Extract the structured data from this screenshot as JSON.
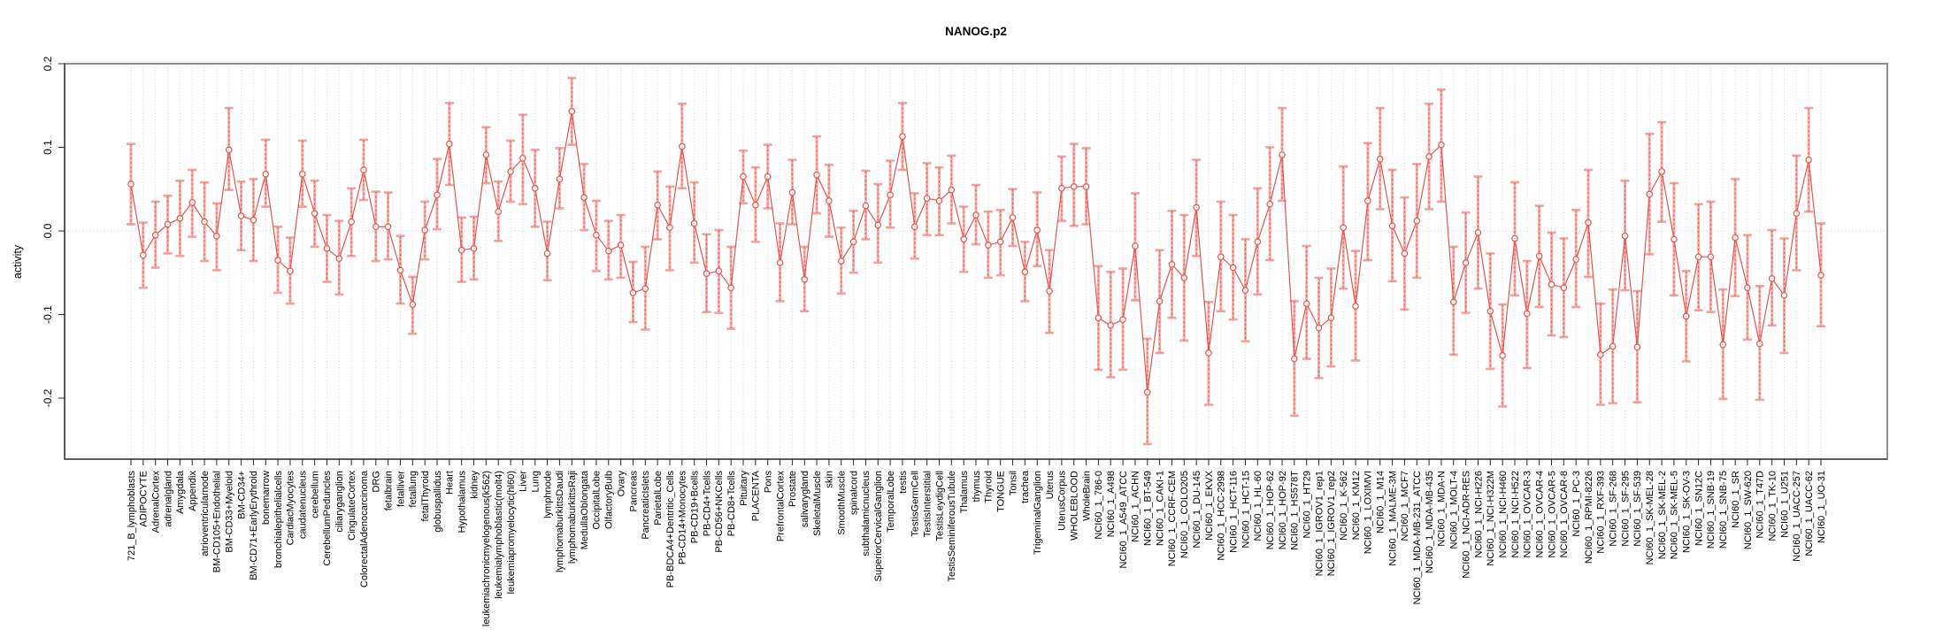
{
  "title": "NANOG.p2",
  "chart_data": {
    "type": "line",
    "title": "NANOG.p2",
    "xlabel": "",
    "ylabel": "activity",
    "ylim": [
      -0.27,
      0.2
    ],
    "yticks": [
      0.2,
      0.1,
      0.0,
      -0.1,
      -0.2
    ],
    "grid": "vertical dotted gridline per category; dotted horizontal line at 0.0",
    "legend": "none",
    "marker": "open-circle",
    "point_color": "#e4564f",
    "errorbar_color": "#f4a09b",
    "gridline_color": "#dadada",
    "frame_color": "#8f8f8f",
    "categories": [
      "721_B_lymphoblasts",
      "ADIPOCYTE",
      "AdrenalCortex",
      "adrenalgland",
      "Amygdala",
      "Appendix",
      "atrioventricularnode",
      "BM-CD105+Endothelial",
      "BM-CD33+Myeloid",
      "BM-CD34+",
      "BM-CD71+EarlyErythroid",
      "bonemarrow",
      "bronchialepithelialcells",
      "CardiacMyocytes",
      "caudatenucleus",
      "cerebellum",
      "CerebellumPeduncles",
      "ciliaryganglion",
      "CingulateCortex",
      "ColorectalAdenocarcinoma",
      "DRG",
      "fetalbrain",
      "fetalliver",
      "fetallung",
      "fetalThyroid",
      "globuspallidus",
      "Heart",
      "Hypothalamus",
      "kidney",
      "leukemiachronicmyelogenous(k562)",
      "leukemialymphoblastic(molt4)",
      "leukemiapromyelocytic(hl60)",
      "Liver",
      "Lung",
      "lymphnode",
      "lymphomaburkittsDaudi",
      "lymphomaburkittsRaji",
      "MedullaOblongata",
      "OccipitalLobe",
      "OlfactoryBulb",
      "Ovary",
      "Pancreas",
      "PancreaticIslets",
      "ParietalLobe",
      "PB-BDCA4+Dentritic_Cells",
      "PB-CD14+Monocytes",
      "PB-CD19+Bcells",
      "PB-CD4+Tcells",
      "PB-CD56+NKCells",
      "PB-CD8+Tcells",
      "Pituitary",
      "PLACENTA",
      "Pons",
      "PrefrontalCortex",
      "Prostate",
      "salivarygland",
      "SkeletalMuscle",
      "skin",
      "SmoothMuscle",
      "spinalcord",
      "subthalamicnucleus",
      "SuperiorCervicalGanglion",
      "TemporalLobe",
      "testis",
      "TestisGermCell",
      "TestisInterstitial",
      "TestisLeydigCell",
      "TestisSeminiferousTubule",
      "Thalamus",
      "thymus",
      "Thyroid",
      "TONGUE",
      "Tonsil",
      "trachea",
      "TrigeminalGanglion",
      "Uterus",
      "UterusCorpus",
      "WHOLEBLOOD",
      "WholeBrain",
      "NCI60_1_786-0",
      "NCI60_1_A498",
      "NCI60_1_A549_ATCC",
      "NCI60_1_ACHN",
      "NCI60_1_BT-549",
      "NCI60_1_CAKI-1",
      "NCI60_1_CCRF-CEM",
      "NCI60_1_COLO205",
      "NCI60_1_DU-145",
      "NCI60_1_EKVX",
      "NCI60_1_HCC-2998",
      "NCI60_1_HCT-116",
      "NCI60_1_HCT-15",
      "NCI60_1_HL-60",
      "NCI60_1_HOP-62",
      "NCI60_1_HOP-92",
      "NCI60_1_HS578T",
      "NCI60_1_HT29",
      "NCI60_1_IGROV1_rep1",
      "NCI60_1_IGROV1_rep2",
      "NCI60_1_K-562",
      "NCI60_1_KM12",
      "NCI60_1_LOXIMVI",
      "NCI60_1_M14",
      "NCI60_1_MALME-3M",
      "NCI60_1_MCF7",
      "NCI60_1_MDA-MB-231_ATCC",
      "NCI60_1_MDA-MB-435",
      "NCI60_1_MDA-N",
      "NCI60_1_MOLT-4",
      "NCI60_1_NCI-ADR-RES",
      "NCI60_1_NCI-H226",
      "NCI60_1_NCI-H322M",
      "NCI60_1_NCI-H460",
      "NCI60_1_NCI-H522",
      "NCI60_1_OVCAR-3",
      "NCI60_1_OVCAR-4",
      "NCI60_1_OVCAR-5",
      "NCI60_1_OVCAR-8",
      "NCI60_1_PC-3",
      "NCI60_1_RPMI-8226",
      "NCI60_1_RXF-393",
      "NCI60_1_SF-268",
      "NCI60_1_SF-295",
      "NCI60_1_SF-539",
      "NCI60_1_SK-MEL-28",
      "NCI60_1_SK-MEL-2",
      "NCI60_1_SK-MEL-5",
      "NCI60_1_SK-OV-3",
      "NCI60_1_SN12C",
      "NCI60_1_SNB-19",
      "NCI60_1_SNB-75",
      "NCI60_1_SR",
      "NCI60_1_SW-620",
      "NCI60_1_T47D",
      "NCI60_1_TK-10",
      "NCI60_1_U251",
      "NCI60_1_UACC-257",
      "NCI60_1_UACC-62",
      "NCI60_1_UO-31"
    ],
    "series": [
      {
        "name": "activity",
        "values": [
          0.056,
          -0.029,
          -0.005,
          0.008,
          0.015,
          0.034,
          0.011,
          -0.006,
          0.097,
          0.018,
          0.013,
          0.068,
          -0.035,
          -0.048,
          0.068,
          0.021,
          -0.021,
          -0.033,
          0.011,
          0.073,
          0.005,
          0.005,
          -0.047,
          -0.088,
          0.001,
          0.043,
          0.104,
          -0.023,
          -0.021,
          0.091,
          0.023,
          0.071,
          0.087,
          0.051,
          -0.027,
          0.062,
          0.143,
          0.04,
          -0.005,
          -0.024,
          -0.017,
          -0.074,
          -0.069,
          0.031,
          0.004,
          0.101,
          0.009,
          -0.051,
          -0.048,
          -0.068,
          0.065,
          0.031,
          0.065,
          -0.038,
          0.046,
          -0.058,
          0.067,
          0.036,
          -0.036,
          -0.013,
          0.03,
          0.007,
          0.043,
          0.113,
          0.005,
          0.039,
          0.036,
          0.049,
          -0.01,
          0.019,
          -0.017,
          -0.013,
          0.016,
          -0.049,
          0.001,
          -0.072,
          0.051,
          0.053,
          0.053,
          -0.104,
          -0.113,
          -0.106,
          -0.018,
          -0.193,
          -0.084,
          -0.04,
          -0.056,
          0.028,
          -0.146,
          -0.031,
          -0.044,
          -0.071,
          -0.013,
          0.032,
          0.091,
          -0.153,
          -0.087,
          -0.116,
          -0.104,
          0.004,
          -0.09,
          0.036,
          0.086,
          0.006,
          -0.027,
          0.012,
          0.089,
          0.103,
          -0.085,
          -0.038,
          -0.002,
          -0.096,
          -0.149,
          -0.009,
          -0.099,
          -0.03,
          -0.064,
          -0.068,
          -0.034,
          0.01,
          -0.148,
          -0.138,
          -0.006,
          -0.139,
          0.044,
          0.071,
          -0.01,
          -0.102,
          -0.031,
          -0.031,
          -0.136,
          -0.008,
          -0.068,
          -0.135,
          -0.057,
          -0.077,
          0.021,
          0.085,
          -0.053
        ],
        "err_low": [
          0.008,
          -0.068,
          -0.044,
          -0.027,
          -0.03,
          -0.007,
          -0.036,
          -0.047,
          0.049,
          -0.023,
          -0.036,
          0.029,
          -0.074,
          -0.087,
          0.029,
          -0.019,
          -0.061,
          -0.076,
          -0.03,
          0.037,
          -0.036,
          -0.034,
          -0.087,
          -0.123,
          -0.034,
          0.002,
          0.055,
          -0.061,
          -0.058,
          0.057,
          -0.012,
          0.035,
          0.032,
          0.005,
          -0.059,
          0.027,
          0.103,
          0.001,
          -0.048,
          -0.058,
          -0.056,
          -0.109,
          -0.118,
          -0.01,
          -0.047,
          0.051,
          -0.038,
          -0.097,
          -0.098,
          -0.117,
          0.033,
          -0.013,
          0.027,
          -0.084,
          0.008,
          -0.096,
          0.021,
          -0.007,
          -0.075,
          -0.05,
          -0.01,
          -0.038,
          0.004,
          0.073,
          -0.033,
          -0.005,
          -0.005,
          0.009,
          -0.049,
          -0.016,
          -0.056,
          -0.053,
          -0.018,
          -0.084,
          -0.042,
          -0.122,
          0.012,
          0.006,
          0.008,
          -0.166,
          -0.175,
          -0.166,
          -0.083,
          -0.255,
          -0.146,
          -0.104,
          -0.131,
          -0.03,
          -0.208,
          -0.096,
          -0.106,
          -0.132,
          -0.076,
          -0.035,
          0.036,
          -0.221,
          -0.153,
          -0.176,
          -0.162,
          -0.069,
          -0.155,
          -0.035,
          0.026,
          -0.06,
          -0.094,
          -0.056,
          0.026,
          0.035,
          -0.148,
          -0.098,
          -0.069,
          -0.165,
          -0.21,
          -0.077,
          -0.164,
          -0.091,
          -0.125,
          -0.127,
          -0.091,
          -0.055,
          -0.208,
          -0.206,
          -0.071,
          -0.205,
          -0.028,
          0.011,
          -0.077,
          -0.156,
          -0.095,
          -0.097,
          -0.201,
          -0.078,
          -0.13,
          -0.202,
          -0.113,
          -0.146,
          -0.047,
          0.023,
          -0.114
        ],
        "err_high": [
          0.104,
          0.01,
          0.035,
          0.042,
          0.06,
          0.073,
          0.058,
          0.033,
          0.147,
          0.059,
          0.062,
          0.109,
          0.005,
          -0.008,
          0.108,
          0.06,
          0.019,
          0.012,
          0.051,
          0.109,
          0.047,
          0.046,
          -0.006,
          -0.055,
          0.035,
          0.086,
          0.153,
          0.016,
          0.017,
          0.124,
          0.059,
          0.108,
          0.139,
          0.097,
          0.011,
          0.099,
          0.183,
          0.08,
          0.036,
          0.012,
          0.019,
          -0.037,
          -0.019,
          0.071,
          0.053,
          0.152,
          0.058,
          -0.004,
          0.001,
          -0.019,
          0.096,
          0.076,
          0.103,
          0.009,
          0.085,
          -0.019,
          0.113,
          0.079,
          0.004,
          0.024,
          0.072,
          0.056,
          0.084,
          0.153,
          0.045,
          0.081,
          0.076,
          0.09,
          0.029,
          0.055,
          0.023,
          0.025,
          0.05,
          -0.013,
          0.046,
          -0.023,
          0.089,
          0.104,
          0.099,
          -0.042,
          -0.049,
          -0.045,
          0.045,
          -0.129,
          -0.023,
          0.024,
          0.019,
          0.085,
          -0.085,
          0.035,
          0.019,
          -0.01,
          0.051,
          0.1,
          0.147,
          -0.084,
          -0.018,
          -0.056,
          -0.045,
          0.077,
          -0.024,
          0.105,
          0.147,
          0.073,
          0.04,
          0.08,
          0.152,
          0.169,
          -0.019,
          0.022,
          0.065,
          -0.027,
          -0.088,
          0.058,
          -0.036,
          0.03,
          -0.002,
          -0.009,
          0.025,
          0.073,
          -0.087,
          -0.07,
          0.06,
          -0.072,
          0.116,
          0.13,
          0.057,
          -0.048,
          0.032,
          0.035,
          -0.07,
          0.062,
          -0.005,
          -0.066,
          0.001,
          -0.009,
          0.09,
          0.147,
          0.009
        ]
      }
    ]
  }
}
